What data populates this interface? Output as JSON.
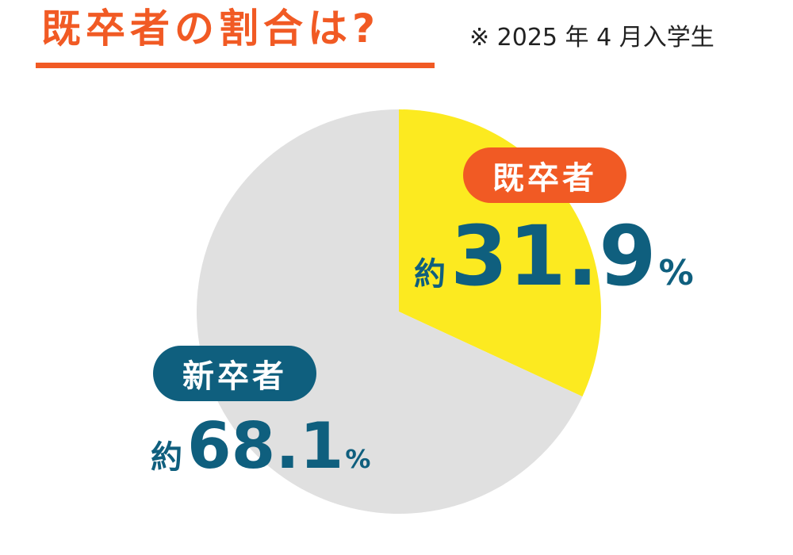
{
  "header": {
    "title": "既卒者の割合は?",
    "note": "※ 2025 年 4 月入学生"
  },
  "chart_data": {
    "type": "pie",
    "title": "既卒者の割合は?",
    "slices": [
      {
        "label": "既卒者",
        "value": 31.9,
        "color": "#fcea20",
        "prefix": "約",
        "display": "31.9",
        "unit": "%"
      },
      {
        "label": "新卒者",
        "value": 68.1,
        "color": "#e0e0e0",
        "prefix": "約",
        "display": "68.1",
        "unit": "%"
      }
    ],
    "start_angle": "12 o'clock",
    "direction": "clockwise"
  },
  "colors": {
    "accent_orange": "#f15a24",
    "accent_teal": "#0f5f7e"
  }
}
